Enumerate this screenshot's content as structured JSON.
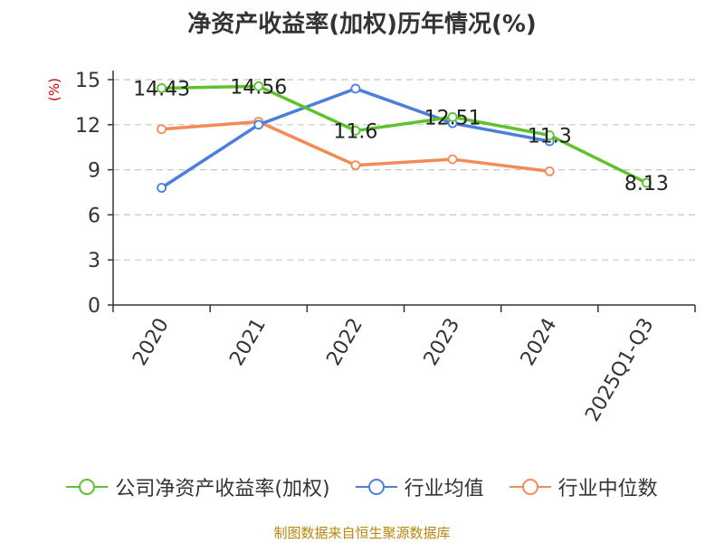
{
  "chart_data": {
    "type": "line",
    "title": "净资产收益率(加权)历年情况(%)",
    "ylabel": "(%)",
    "xlabel": "",
    "categories": [
      "2020",
      "2021",
      "2022",
      "2023",
      "2024",
      "2025Q1-Q3"
    ],
    "ylim": [
      0,
      15
    ],
    "yticks": [
      0,
      3,
      6,
      9,
      12,
      15
    ],
    "grid": true,
    "legend_position": "bottom",
    "series": [
      {
        "name": "公司净资产收益率(加权)",
        "color": "#5ec22e",
        "values": [
          14.43,
          14.56,
          11.6,
          12.51,
          11.3,
          8.13
        ],
        "labels": [
          "14.43",
          "14.56",
          "11.6",
          "12.51",
          "11.3",
          "8.13"
        ]
      },
      {
        "name": "行业均值",
        "color": "#4a7fdc",
        "values": [
          7.8,
          12.0,
          14.4,
          12.1,
          10.9,
          null
        ]
      },
      {
        "name": "行业中位数",
        "color": "#f48b57",
        "values": [
          11.7,
          12.2,
          9.3,
          9.7,
          8.9,
          null
        ]
      }
    ]
  },
  "source": "制图数据来自恒生聚源数据库"
}
